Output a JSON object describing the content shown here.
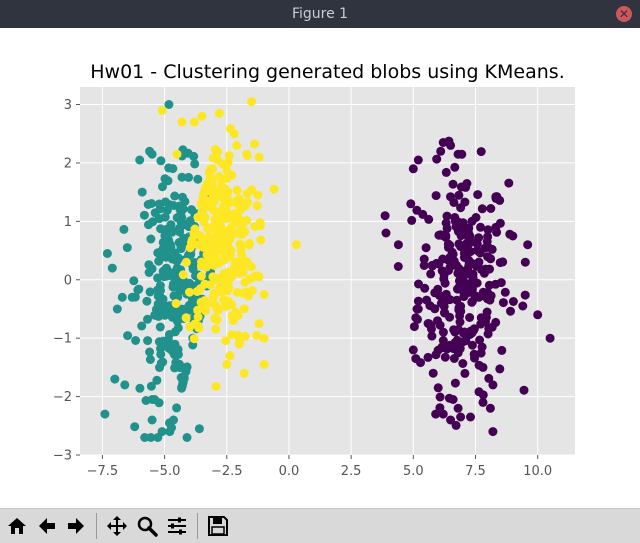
{
  "window": {
    "title": "Figure 1",
    "close_glyph": "✕"
  },
  "chart_data": {
    "type": "scatter",
    "title": "Hw01 - Clustering generated blobs using KMeans.",
    "xlabel": "",
    "ylabel": "",
    "xlim": [
      -8.4,
      11.5
    ],
    "ylim": [
      -3.0,
      3.3
    ],
    "xticks": [
      -7.5,
      -5.0,
      -2.5,
      0.0,
      2.5,
      5.0,
      7.5,
      10.0
    ],
    "xtick_labels": [
      "−7.5",
      "−5.0",
      "−2.5",
      "0.0",
      "2.5",
      "5.0",
      "7.5",
      "10.0"
    ],
    "yticks": [
      -3,
      -2,
      -1,
      0,
      1,
      2,
      3
    ],
    "ytick_labels": [
      "−3",
      "−2",
      "−1",
      "0",
      "1",
      "2",
      "3"
    ],
    "grid": true,
    "background": "#e5e5e5",
    "series": [
      {
        "color": "#440154",
        "center": [
          7.0,
          0.0
        ],
        "spread": [
          0.9,
          0.95
        ],
        "count": 260,
        "points": [
          [
            3.9,
            0.8
          ],
          [
            4.4,
            0.6
          ],
          [
            4.9,
            1.3
          ],
          [
            5.0,
            1.9
          ],
          [
            5.2,
            2.05
          ],
          [
            6.1,
            2.2
          ],
          [
            6.2,
            2.35
          ],
          [
            6.5,
            2.3
          ],
          [
            6.8,
            2.15
          ],
          [
            5.7,
            0.1
          ],
          [
            5.1,
            -0.65
          ],
          [
            5.2,
            -0.5
          ],
          [
            5.0,
            -1.2
          ],
          [
            5.1,
            -1.35
          ],
          [
            5.8,
            -1.6
          ],
          [
            6.0,
            -1.85
          ],
          [
            5.9,
            -2.3
          ],
          [
            6.2,
            -2.3
          ],
          [
            6.5,
            -2.4
          ],
          [
            6.6,
            -2.05
          ],
          [
            6.8,
            -2.2
          ],
          [
            6.9,
            -2.35
          ],
          [
            7.3,
            -2.35
          ],
          [
            7.8,
            -2.1
          ],
          [
            8.1,
            -2.2
          ],
          [
            8.2,
            -2.6
          ],
          [
            9.0,
            0.75
          ],
          [
            9.6,
            0.6
          ],
          [
            10.5,
            -1.0
          ],
          [
            10.0,
            -0.6
          ],
          [
            9.5,
            0.3
          ],
          [
            9.4,
            -0.45
          ],
          [
            8.2,
            -1.8
          ],
          [
            7.8,
            -1.5
          ]
        ]
      },
      {
        "color": "#21918c",
        "center": [
          -4.5,
          -0.1
        ],
        "spread": [
          0.75,
          0.95
        ],
        "count": 280,
        "points": [
          [
            -7.4,
            -2.3
          ],
          [
            -7.0,
            -1.7
          ],
          [
            -7.3,
            0.45
          ],
          [
            -7.1,
            0.2
          ],
          [
            -6.9,
            -0.5
          ],
          [
            -6.6,
            -1.8
          ],
          [
            -6.3,
            -0.3
          ],
          [
            -5.8,
            -2.7
          ],
          [
            -5.5,
            -2.4
          ],
          [
            -5.4,
            -2.05
          ],
          [
            -5.1,
            -2.6
          ],
          [
            -4.8,
            -2.45
          ],
          [
            -4.1,
            -2.7
          ],
          [
            -3.6,
            -2.55
          ],
          [
            -5.5,
            2.15
          ],
          [
            -5.6,
            2.2
          ],
          [
            -6.0,
            2.05
          ],
          [
            -5.9,
            1.5
          ],
          [
            -6.5,
            0.55
          ],
          [
            -6.7,
            -0.3
          ]
        ]
      },
      {
        "color": "#fde725",
        "center": [
          -2.8,
          0.6
        ],
        "spread": [
          0.7,
          0.85
        ],
        "count": 280,
        "points": [
          [
            -5.1,
            2.9
          ],
          [
            -4.3,
            2.7
          ],
          [
            -3.8,
            2.7
          ],
          [
            -3.5,
            2.8
          ],
          [
            -2.2,
            2.5
          ],
          [
            -2.8,
            2.85
          ],
          [
            -1.5,
            3.05
          ],
          [
            -2.1,
            2.3
          ],
          [
            -1.7,
            2.15
          ],
          [
            -1.2,
            2.1
          ],
          [
            -0.6,
            1.55
          ],
          [
            0.3,
            0.6
          ],
          [
            -1.2,
            0.05
          ],
          [
            -1.0,
            -0.25
          ],
          [
            -1.2,
            -0.75
          ],
          [
            -1.0,
            -1.0
          ],
          [
            -1.3,
            -0.95
          ],
          [
            -1.0,
            -1.45
          ],
          [
            -1.8,
            -1.6
          ],
          [
            -2.5,
            -1.45
          ],
          [
            -2.0,
            -1.1
          ],
          [
            -4.5,
            2.15
          ]
        ]
      }
    ]
  },
  "toolbar": {
    "home_icon": "home-icon",
    "back_icon": "arrow-left-icon",
    "forward_icon": "arrow-right-icon",
    "pan_icon": "pan-icon",
    "zoom_icon": "zoom-icon",
    "configure_icon": "sliders-icon",
    "save_icon": "save-icon"
  }
}
